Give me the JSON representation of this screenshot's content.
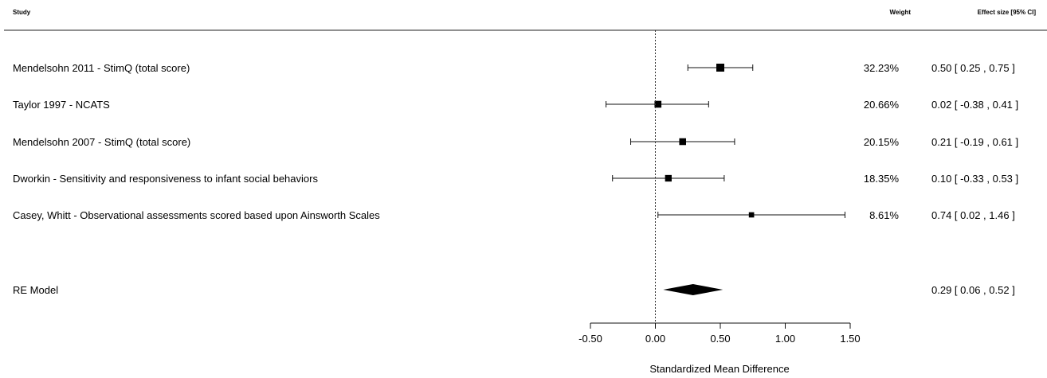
{
  "chart_data": {
    "type": "forest",
    "headers": {
      "study": "Study",
      "weight": "Weight",
      "effect": "Effect size [95% CI]"
    },
    "studies": [
      {
        "label": "Mendelsohn 2011  -  StimQ (total score)",
        "estimate": 0.5,
        "ci_low": 0.25,
        "ci_high": 0.75,
        "weight": "32.23%",
        "weight_value": 32.23,
        "ci_text": "0.50 [  0.25 ,  0.75 ]"
      },
      {
        "label": "Taylor 1997  -  NCATS",
        "estimate": 0.02,
        "ci_low": -0.38,
        "ci_high": 0.41,
        "weight": "20.66%",
        "weight_value": 20.66,
        "ci_text": "0.02 [ -0.38 ,  0.41 ]"
      },
      {
        "label": "Mendelsohn 2007  -  StimQ (total score)",
        "estimate": 0.21,
        "ci_low": -0.19,
        "ci_high": 0.61,
        "weight": "20.15%",
        "weight_value": 20.15,
        "ci_text": "0.21 [ -0.19 ,  0.61 ]"
      },
      {
        "label": "Dworkin  -  Sensitivity and responsiveness to infant social behaviors",
        "estimate": 0.1,
        "ci_low": -0.33,
        "ci_high": 0.53,
        "weight": "18.35%",
        "weight_value": 18.35,
        "ci_text": "0.10 [ -0.33 ,  0.53 ]"
      },
      {
        "label": "Casey, Whitt  -  Observational assessments scored based upon Ainsworth Scales",
        "estimate": 0.74,
        "ci_low": 0.02,
        "ci_high": 1.46,
        "weight": "8.61%",
        "weight_value": 8.61,
        "ci_text": "0.74 [  0.02 ,  1.46 ]"
      }
    ],
    "summary": {
      "label": "RE Model",
      "estimate": 0.29,
      "ci_low": 0.06,
      "ci_high": 0.52,
      "ci_text": "0.29 [ 0.06 ,  0.52 ]"
    },
    "xlabel": "Standardized Mean Difference",
    "xlim": [
      -0.5,
      1.5
    ],
    "xticks": [
      -0.5,
      0.0,
      0.5,
      1.0,
      1.5
    ],
    "xtick_labels": [
      "-0.50",
      "0.00",
      "0.50",
      "1.00",
      "1.50"
    ],
    "reference_line": 0
  }
}
